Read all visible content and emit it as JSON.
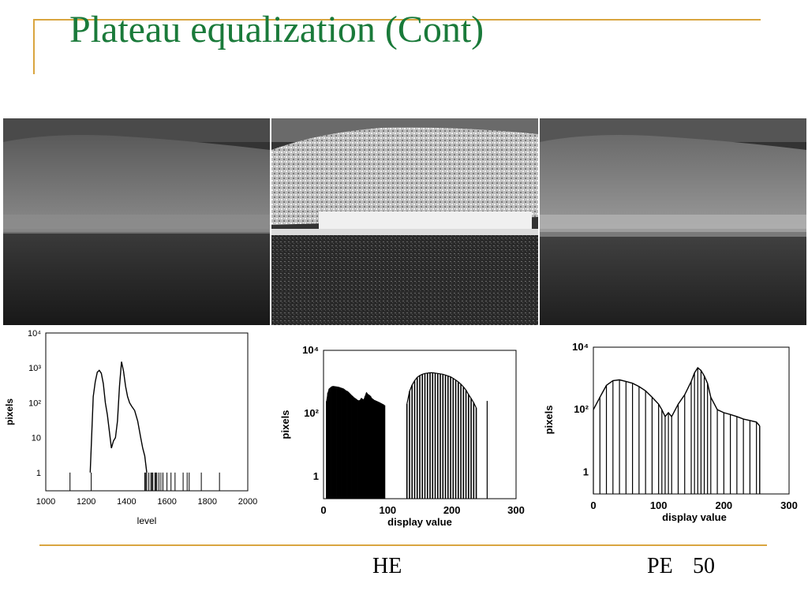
{
  "slide": {
    "title": "Plateau equalization (Cont)",
    "captions": {
      "he": "HE",
      "pe": "PE",
      "page_number": "50"
    },
    "colors": {
      "title": "#1a7a3a",
      "accent_line": "#d9a53f"
    }
  },
  "chart_data": [
    {
      "type": "line",
      "title": "",
      "xlabel": "level",
      "ylabel": "pixels",
      "y_scale": "log",
      "xlim": [
        1000,
        2000
      ],
      "x_ticks": [
        "1000",
        "1200",
        "1400",
        "1600",
        "1800",
        "2000"
      ],
      "y_ticks": [
        "1",
        "10",
        "10²",
        "10³",
        "10⁴"
      ],
      "ylim": [
        0.3,
        10000
      ],
      "series": [
        {
          "x": [
            1220,
            1235,
            1245,
            1255,
            1265,
            1275,
            1285,
            1295,
            1305,
            1315,
            1325,
            1335,
            1345,
            1355,
            1365,
            1375,
            1385,
            1395,
            1405,
            1415,
            1425,
            1440,
            1455,
            1470,
            1480,
            1490,
            1500
          ],
          "values": [
            1,
            150,
            400,
            750,
            850,
            700,
            350,
            100,
            45,
            15,
            5,
            8,
            10,
            30,
            300,
            1500,
            800,
            300,
            150,
            100,
            80,
            60,
            30,
            10,
            5,
            3,
            1
          ]
        }
      ],
      "spikes_x": [
        1120,
        1225,
        1490,
        1495,
        1500,
        1510,
        1520,
        1525,
        1530,
        1540,
        1545,
        1550,
        1560,
        1570,
        1580,
        1600,
        1620,
        1640,
        1680,
        1700,
        1710,
        1770,
        1860
      ]
    },
    {
      "type": "bar",
      "title": "",
      "xlabel": "display value",
      "ylabel": "pixels",
      "y_scale": "log",
      "xlim": [
        0,
        300
      ],
      "x_ticks": [
        "0",
        "100",
        "200",
        "300"
      ],
      "y_ticks": [
        "1",
        "10²",
        "10⁴"
      ],
      "ylim": [
        0.2,
        10000
      ],
      "groups": [
        {
          "x_range": [
            5,
            95
          ],
          "step": 2,
          "values": [
            250,
            450,
            600,
            650,
            700,
            720,
            710,
            700,
            690,
            680,
            660,
            640,
            620,
            600,
            560,
            520,
            500,
            460,
            420,
            380,
            350,
            320,
            300,
            280,
            260,
            250,
            260,
            300,
            280,
            270,
            350,
            450,
            400,
            380,
            350,
            300,
            280,
            260,
            250,
            240,
            230,
            220,
            210,
            200,
            190,
            180
          ]
        },
        {
          "x_range": [
            130,
            240
          ],
          "step": 4,
          "values": [
            200,
            500,
            800,
            1100,
            1400,
            1600,
            1750,
            1850,
            1900,
            1950,
            1950,
            1900,
            1850,
            1800,
            1750,
            1650,
            1550,
            1450,
            1300,
            1150,
            1000,
            850,
            700,
            550,
            400,
            300,
            220,
            150
          ]
        }
      ],
      "singles": [
        {
          "x": 255,
          "value": 250
        }
      ]
    },
    {
      "type": "bar",
      "title": "",
      "xlabel": "display value",
      "ylabel": "pixels",
      "y_scale": "log",
      "xlim": [
        0,
        300
      ],
      "x_ticks": [
        "0",
        "100",
        "200",
        "300"
      ],
      "y_ticks": [
        "1",
        "10²",
        "10⁴"
      ],
      "ylim": [
        0.2,
        10000
      ],
      "x": [
        0,
        10,
        20,
        30,
        40,
        50,
        60,
        70,
        80,
        90,
        100,
        105,
        110,
        115,
        120,
        130,
        140,
        150,
        155,
        160,
        165,
        170,
        175,
        180,
        190,
        200,
        210,
        220,
        230,
        240,
        250,
        255
      ],
      "values": [
        100,
        250,
        600,
        850,
        900,
        800,
        700,
        550,
        400,
        250,
        150,
        100,
        60,
        80,
        60,
        150,
        300,
        800,
        1500,
        2200,
        1800,
        1200,
        700,
        250,
        100,
        80,
        70,
        60,
        50,
        45,
        40,
        30
      ],
      "singles": [
        {
          "x": 255,
          "value": 30
        }
      ]
    }
  ]
}
